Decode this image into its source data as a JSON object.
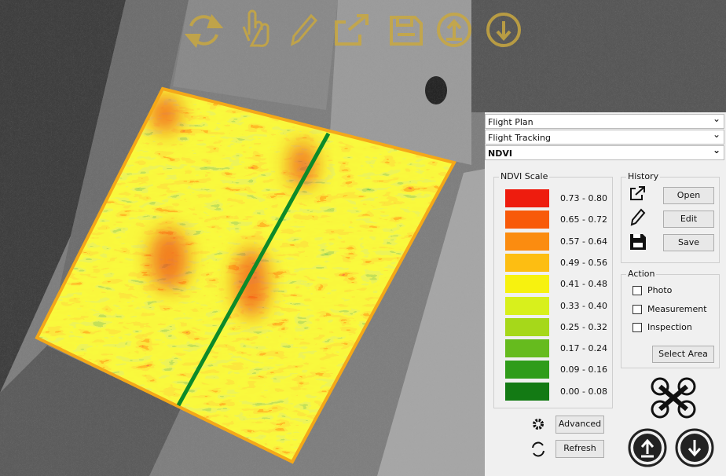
{
  "panel": {
    "sections": [
      "Flight Plan",
      "Flight Tracking",
      "NDVI"
    ],
    "ndvi_scale": {
      "title": "NDVI Scale",
      "ranges": [
        {
          "label": "0.73 - 0.80",
          "color": "#ee1c0e"
        },
        {
          "label": "0.65 - 0.72",
          "color": "#f85a0a"
        },
        {
          "label": "0.57 - 0.64",
          "color": "#fb8c10"
        },
        {
          "label": "0.49 - 0.56",
          "color": "#fdbe12"
        },
        {
          "label": "0.41 - 0.48",
          "color": "#f7f20f"
        },
        {
          "label": "0.33 - 0.40",
          "color": "#d8f01c"
        },
        {
          "label": "0.25 - 0.32",
          "color": "#a6d81a"
        },
        {
          "label": "0.17 - 0.24",
          "color": "#66bb1e"
        },
        {
          "label": "0.09 - 0.16",
          "color": "#2f9c1a"
        },
        {
          "label": "0.00 - 0.08",
          "color": "#137a14"
        }
      ]
    },
    "advanced": "Advanced",
    "refresh": "Refresh",
    "history": {
      "title": "History",
      "buttons": [
        "Open",
        "Edit",
        "Save"
      ]
    },
    "action": {
      "title": "Action",
      "checkboxes": [
        "Photo",
        "Measurement",
        "Inspection"
      ],
      "button": "Select Area"
    }
  }
}
